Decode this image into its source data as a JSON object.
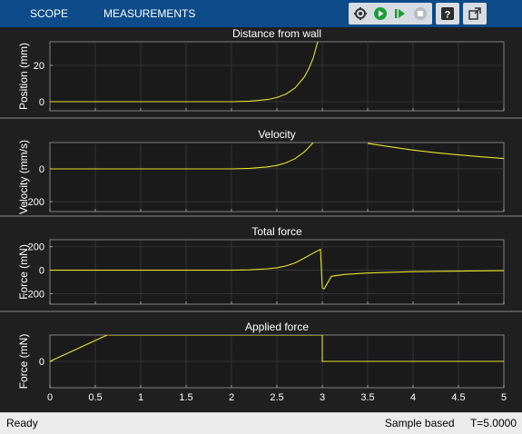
{
  "toolstrip": {
    "tabs": [
      {
        "label": "SCOPE"
      },
      {
        "label": "MEASUREMENTS"
      }
    ],
    "icons": [
      "settings-icon",
      "run-icon",
      "step-forward-icon",
      "stop-icon",
      "help-icon",
      "undock-icon"
    ]
  },
  "status": {
    "left": "Ready",
    "mode": "Sample based",
    "time": "T=5.0000"
  },
  "colors": {
    "trace": "#e6e32b",
    "axes_bg": "#1a1a1a",
    "grid": "#3a3a3a",
    "text": "#ffffff"
  },
  "chart_data": [
    {
      "type": "line",
      "title": "Distance from wall",
      "ylabel": "Position (mm)",
      "xlim": [
        0,
        5
      ],
      "ylim": [
        -5,
        33
      ],
      "yticks": [
        0,
        20
      ],
      "x": [
        0,
        1,
        2,
        2.2,
        2.4,
        2.5,
        2.6,
        2.7,
        2.8,
        2.85,
        2.9,
        2.95
      ],
      "y": [
        0,
        0,
        0,
        0.3,
        1.2,
        2.3,
        4.2,
        7.6,
        13.5,
        18,
        24,
        33
      ]
    },
    {
      "type": "line",
      "title": "Velocity",
      "ylabel": "Velocity (mm/s)",
      "xlim": [
        0,
        5
      ],
      "ylim": [
        -260,
        160
      ],
      "yticks": [
        -200,
        0
      ],
      "segments": [
        {
          "x": [
            0,
            1,
            2,
            2.2,
            2.4,
            2.5,
            2.6,
            2.7,
            2.8,
            2.85,
            2.9
          ],
          "y": [
            0,
            0,
            0,
            3,
            12,
            21,
            36,
            62,
            102,
            130,
            160
          ]
        },
        {
          "x": [
            3.5,
            3.75,
            4,
            4.25,
            4.5,
            4.75,
            5
          ],
          "y": [
            155,
            134,
            114,
            98,
            85,
            73,
            63
          ]
        }
      ]
    },
    {
      "type": "line",
      "title": "Total force",
      "ylabel": "Force (mN)",
      "xlim": [
        0,
        5
      ],
      "ylim": [
        -290,
        260
      ],
      "yticks": [
        -200,
        0,
        200
      ],
      "x": [
        0,
        1,
        2,
        2.2,
        2.4,
        2.5,
        2.6,
        2.7,
        2.8,
        2.9,
        2.98,
        3.0,
        3.02,
        3.1,
        3.25,
        3.5,
        4,
        4.5,
        5
      ],
      "y": [
        0,
        0,
        0,
        3,
        12,
        21,
        36,
        62,
        102,
        145,
        178,
        -150,
        -160,
        -52,
        -36,
        -24,
        -13,
        -8,
        -4
      ]
    },
    {
      "type": "line",
      "title": "Applied force",
      "ylabel": "Force (mN)",
      "xlabel": "",
      "xlim": [
        0,
        5
      ],
      "ylim": [
        -1.15,
        1.15
      ],
      "yticks": [
        0
      ],
      "xticks": [
        0,
        0.5,
        1,
        1.5,
        2,
        2.5,
        3,
        3.5,
        4,
        4.5,
        5
      ],
      "xticklabels": [
        "0",
        "0.5",
        "1",
        "1.5",
        "2",
        "2.5",
        "3",
        "3.5",
        "4",
        "4.5",
        "5"
      ],
      "x": [
        0,
        0.63,
        3.0,
        3.0,
        5
      ],
      "y": [
        0,
        1.15,
        1.15,
        0,
        0
      ]
    }
  ]
}
